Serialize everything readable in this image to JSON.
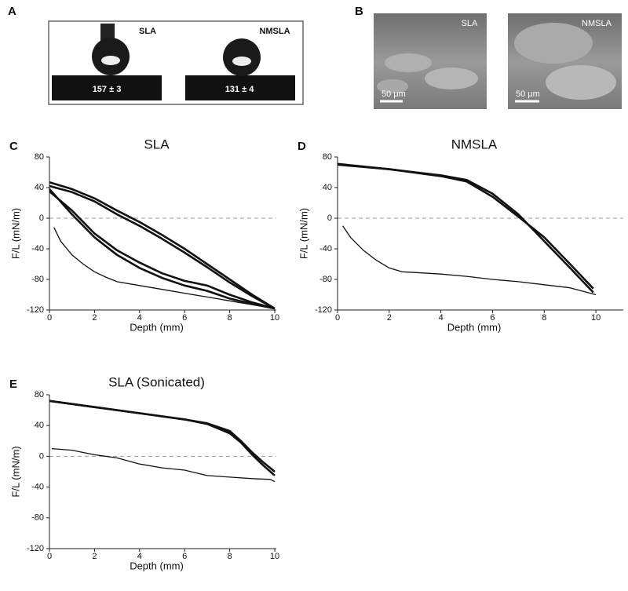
{
  "panel_a": {
    "label": "A",
    "images": [
      {
        "title": "SLA",
        "angle": "157 ± 3"
      },
      {
        "title": "NMSLA",
        "angle": "131 ± 4"
      }
    ]
  },
  "panel_b": {
    "label": "B",
    "images": [
      {
        "title": "SLA",
        "scale_bar": "50 μm"
      },
      {
        "title": "NMSLA",
        "scale_bar": "50 μm"
      }
    ]
  },
  "chart_data": [
    {
      "type": "line",
      "label": "C",
      "title": "SLA",
      "x_label": "Depth (mm)",
      "y_label": "F/L (mN/m)",
      "xlim": [
        0,
        10
      ],
      "ylim": [
        -120,
        80
      ],
      "xticks": [
        0,
        2,
        4,
        6,
        8,
        10
      ],
      "yticks": [
        -120,
        -80,
        -40,
        0,
        40,
        80
      ],
      "reference_line": 0,
      "series": [
        {
          "color": "#111111",
          "x": [
            0.2,
            0.5,
            1,
            1.5,
            2,
            2.5,
            3,
            4,
            5,
            6,
            7,
            8,
            9,
            10
          ],
          "values": [
            -12,
            -30,
            -48,
            -60,
            -70,
            -77,
            -83,
            -88,
            -93,
            -98,
            -103,
            -108,
            -113,
            -118
          ]
        },
        {
          "color": "#111111",
          "x": [
            0,
            1,
            2,
            3,
            4,
            5,
            6,
            7,
            8,
            9,
            10
          ],
          "values": [
            47,
            38,
            26,
            10,
            -5,
            -22,
            -40,
            -60,
            -80,
            -100,
            -118
          ]
        },
        {
          "color": "#111111",
          "x": [
            10,
            9,
            8,
            7,
            6,
            5,
            4,
            3,
            2,
            1,
            0
          ],
          "values": [
            -118,
            -112,
            -105,
            -95,
            -88,
            -78,
            -65,
            -48,
            -25,
            5,
            38
          ]
        },
        {
          "color": "#111111",
          "x": [
            0,
            1,
            2,
            3,
            4,
            5,
            6,
            7,
            8,
            9,
            10
          ],
          "values": [
            42,
            34,
            22,
            5,
            -10,
            -27,
            -45,
            -64,
            -84,
            -102,
            -118
          ]
        },
        {
          "color": "#111111",
          "x": [
            10,
            9,
            8,
            7,
            6,
            5,
            4,
            3,
            2,
            1,
            0
          ],
          "values": [
            -118,
            -110,
            -100,
            -88,
            -82,
            -72,
            -58,
            -42,
            -20,
            10,
            35
          ]
        }
      ]
    },
    {
      "type": "line",
      "label": "D",
      "title": "NMSLA",
      "x_label": "Depth (mm)",
      "y_label": "F/L (mN/m)",
      "xlim": [
        0,
        11
      ],
      "ylim": [
        -120,
        80
      ],
      "xticks": [
        0,
        2,
        4,
        6,
        8,
        10
      ],
      "yticks": [
        -120,
        -80,
        -40,
        0,
        40,
        80
      ],
      "reference_line": 0,
      "series": [
        {
          "color": "#111111",
          "x": [
            0.2,
            0.5,
            1,
            1.5,
            2,
            2.5,
            3,
            4,
            5,
            6,
            7,
            8,
            9,
            10
          ],
          "values": [
            -10,
            -25,
            -42,
            -55,
            -65,
            -70,
            -71,
            -73,
            -76,
            -80,
            -83,
            -87,
            -91,
            -100
          ]
        },
        {
          "color": "#111111",
          "x": [
            0,
            2,
            4,
            5,
            6,
            7,
            8,
            9,
            9.9
          ],
          "values": [
            71,
            64,
            56,
            50,
            32,
            5,
            -30,
            -65,
            -97
          ]
        },
        {
          "color": "#111111",
          "x": [
            9.9,
            9,
            8,
            7,
            6,
            5,
            4,
            2,
            0
          ],
          "values": [
            -92,
            -60,
            -25,
            2,
            28,
            48,
            55,
            64,
            70
          ]
        }
      ]
    },
    {
      "type": "line",
      "label": "E",
      "title": "SLA (Sonicated)",
      "x_label": "Depth (mm)",
      "y_label": "F/L (mN/m)",
      "xlim": [
        0,
        10
      ],
      "ylim": [
        -120,
        80
      ],
      "xticks": [
        0,
        2,
        4,
        6,
        8,
        10
      ],
      "yticks": [
        -120,
        -80,
        -40,
        0,
        40,
        80
      ],
      "reference_line": 0,
      "series": [
        {
          "color": "#111111",
          "x": [
            0.1,
            1,
            1.5,
            2,
            3,
            4,
            5,
            6,
            7,
            8,
            9,
            9.8,
            10
          ],
          "values": [
            10,
            8,
            5,
            2,
            -2,
            -10,
            -15,
            -18,
            -25,
            -27,
            -29,
            -30,
            -33
          ]
        },
        {
          "color": "#111111",
          "x": [
            0,
            2,
            4,
            6,
            7,
            8,
            8.5,
            9,
            9.5,
            10
          ],
          "values": [
            72,
            64,
            56,
            48,
            43,
            33,
            20,
            5,
            -8,
            -20
          ]
        },
        {
          "color": "#111111",
          "x": [
            10,
            9.5,
            9,
            8.5,
            8,
            7,
            6,
            4,
            2,
            0
          ],
          "values": [
            -25,
            -12,
            2,
            18,
            30,
            42,
            48,
            56,
            64,
            72
          ]
        }
      ]
    }
  ]
}
